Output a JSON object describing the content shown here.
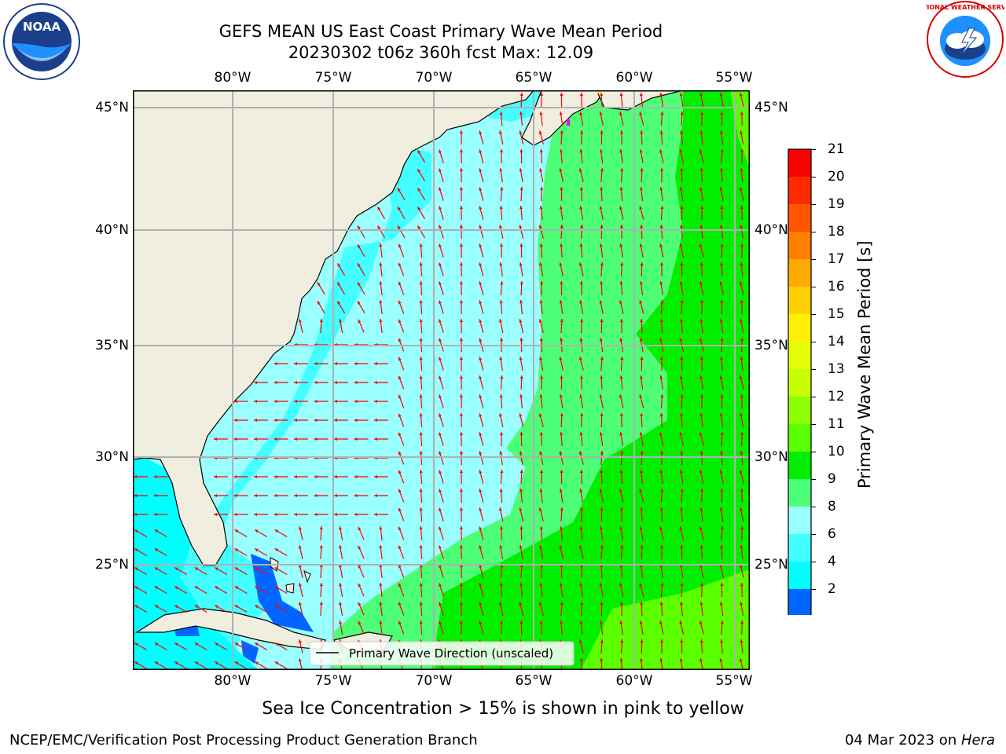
{
  "title_line1": "GEFS MEAN US East Coast Primary Wave Mean Period",
  "title_line2": "20230302 t06z 360h fcst   Max: 12.09",
  "axes": {
    "top_lon": [
      "80°W",
      "75°W",
      "70°W",
      "65°W",
      "60°W",
      "55°W"
    ],
    "bottom_lon": [
      "80°W",
      "75°W",
      "70°W",
      "65°W",
      "60°W",
      "55°W"
    ],
    "left_lat": [
      "45°N",
      "40°N",
      "35°N",
      "30°N",
      "25°N"
    ],
    "right_lat": [
      "45°N",
      "40°N",
      "35°N",
      "30°N",
      "25°N"
    ]
  },
  "legend": {
    "text": "Primary Wave Direction (unscaled)"
  },
  "colorbar": {
    "label": "Primary Wave Mean Period [s]",
    "ticks": [
      "21",
      "20",
      "19",
      "18",
      "17",
      "16",
      "15",
      "14",
      "13",
      "12",
      "11",
      "10",
      "9",
      "8",
      "6",
      "4",
      "2"
    ],
    "colors": [
      "#ff0000",
      "#ff2a00",
      "#ff5500",
      "#ff8000",
      "#ffaa00",
      "#ffd000",
      "#fff000",
      "#e6ff00",
      "#c8ff00",
      "#8cff00",
      "#5aff00",
      "#00ee00",
      "#4dff77",
      "#99ffff",
      "#44ffff",
      "#00ffff",
      "#0066ff"
    ],
    "extend_color": "#0000ff"
  },
  "subtitle": "Sea Ice Concentration > 15% is shown in pink to yellow",
  "footer_left": "NCEP/EMC/Verification Post Processing Product Generation Branch",
  "footer_right_date": "04 Mar 2023 on ",
  "footer_right_host": "Hera",
  "logos": {
    "noaa_text": "NOAA",
    "nws_text": "NATIONAL WEATHER SERVICE"
  },
  "colors": {
    "land": "#efeedf",
    "arrow": "#ff0000",
    "grid": "#b0b0b0"
  }
}
